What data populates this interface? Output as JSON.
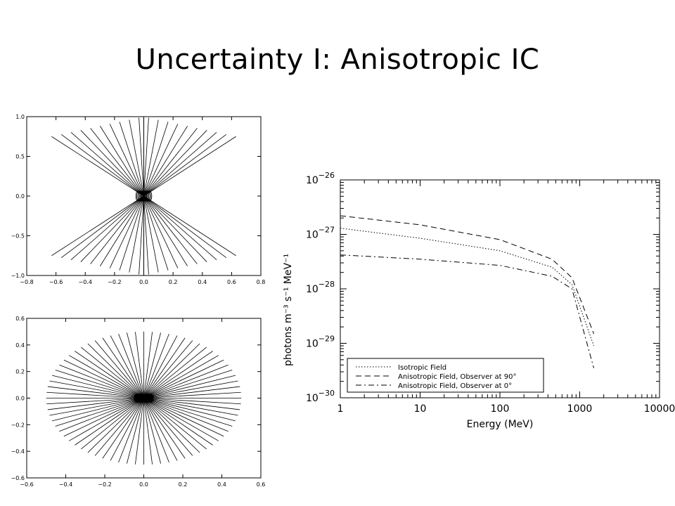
{
  "slide": {
    "title": "Uncertainty I: Anisotropic IC"
  },
  "chart_data": [
    {
      "type": "scatter",
      "title": "",
      "xlabel": "",
      "ylabel": "",
      "xlim": [
        -0.8,
        0.8
      ],
      "ylim": [
        -1.0,
        1.0
      ],
      "xticks": [
        "−0.8",
        "−0.6",
        "−0.4",
        "−0.2",
        "0.0",
        "0.2",
        "0.4",
        "0.6",
        "0.8"
      ],
      "yticks": [
        "−1.0",
        "−0.5",
        "0.0",
        "0.5",
        "1.0"
      ],
      "description_series": "radial field lines from origin, bipolar (concentrated near vertical axis)",
      "rays": {
        "count": 38,
        "length_x": 0.63,
        "length_y": 1.0,
        "vertical_extent": 1.0
      }
    },
    {
      "type": "scatter",
      "title": "",
      "xlabel": "",
      "ylabel": "",
      "xlim": [
        -0.6,
        0.6
      ],
      "ylim": [
        -0.6,
        0.6
      ],
      "xticks": [
        "−0.6",
        "−0.4",
        "−0.2",
        "0.0",
        "0.2",
        "0.4",
        "0.6"
      ],
      "yticks": [
        "−0.6",
        "−0.4",
        "−0.2",
        "0.0",
        "0.2",
        "0.4",
        "0.6"
      ],
      "rays": {
        "count": 72,
        "radius_x": 0.5,
        "radius_y": 0.5
      }
    },
    {
      "type": "line",
      "title": "",
      "xlabel": "Energy (MeV)",
      "ylabel": "photons m⁻³ s⁻¹ MeV⁻¹",
      "xscale": "log",
      "yscale": "log",
      "xlim": [
        1,
        10000
      ],
      "ylim": [
        1e-30,
        1e-26
      ],
      "xticks": [
        "1",
        "10",
        "100",
        "1000",
        "10000"
      ],
      "yticks": [
        {
          "base": "10",
          "exp": "−30"
        },
        {
          "base": "10",
          "exp": "−29"
        },
        {
          "base": "10",
          "exp": "−28"
        },
        {
          "base": "10",
          "exp": "−27"
        },
        {
          "base": "10",
          "exp": "−26"
        }
      ],
      "legend_position": "bottom-left",
      "series": [
        {
          "name": "Isotropic Field",
          "style": "dotted",
          "x": [
            1,
            10,
            100,
            450,
            800,
            1500
          ],
          "y": [
            1.3e-27,
            8.5e-28,
            5e-28,
            2.5e-28,
            1.2e-28,
            9e-30
          ]
        },
        {
          "name": "Anisotropic Field, Observer at 90°",
          "style": "dashed",
          "x": [
            1,
            10,
            100,
            450,
            800,
            1500
          ],
          "y": [
            2.2e-27,
            1.5e-27,
            8e-28,
            3.5e-28,
            1.6e-28,
            1.5e-29
          ]
        },
        {
          "name": "Anisotropic Field, Observer at 0°",
          "style": "dashdot",
          "x": [
            1,
            10,
            100,
            450,
            800,
            1500
          ],
          "y": [
            4.2e-28,
            3.5e-28,
            2.7e-28,
            1.7e-28,
            1e-28,
            3.5e-30
          ]
        }
      ]
    }
  ]
}
